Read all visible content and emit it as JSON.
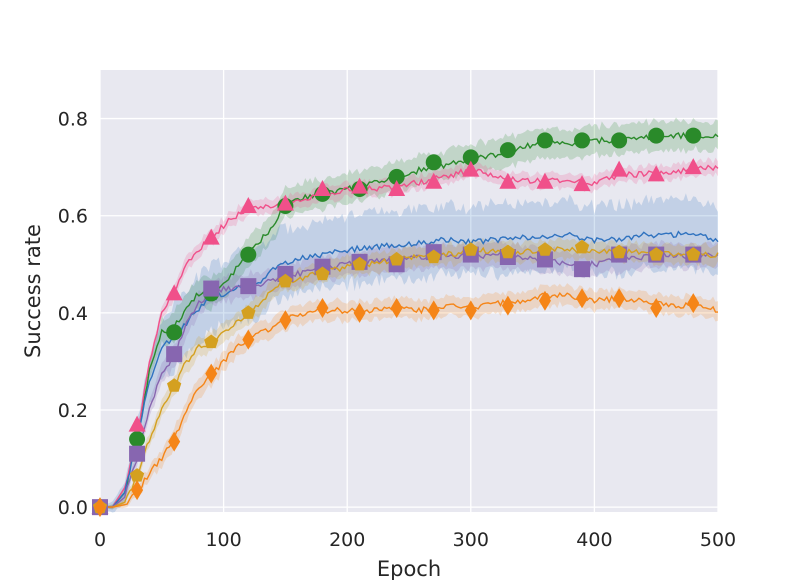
{
  "chart_data": {
    "type": "line",
    "title": "",
    "xlabel": "Epoch",
    "ylabel": "Success rate",
    "xlim": [
      0,
      500
    ],
    "ylim": [
      -0.01,
      0.9
    ],
    "xticks": [
      0,
      100,
      200,
      300,
      400,
      500
    ],
    "yticks": [
      0.0,
      0.2,
      0.4,
      0.6,
      0.8
    ],
    "ytick_labels": [
      "0.0",
      "0.2",
      "0.4",
      "0.6",
      "0.8"
    ],
    "grid": true,
    "legend": "none",
    "marker_x": [
      0,
      30,
      60,
      90,
      120,
      150,
      180,
      210,
      240,
      270,
      300,
      330,
      360,
      390,
      420,
      450,
      480
    ],
    "series": [
      {
        "name": "green-circle",
        "color": "#2a8a2a",
        "marker": "circle",
        "marker_values": [
          0.0,
          0.14,
          0.36,
          0.44,
          0.52,
          0.62,
          0.645,
          0.655,
          0.68,
          0.71,
          0.72,
          0.735,
          0.755,
          0.755,
          0.755,
          0.765,
          0.765
        ],
        "x": [
          0,
          10,
          20,
          30,
          40,
          50,
          60,
          70,
          80,
          90,
          100,
          110,
          120,
          130,
          140,
          150,
          160,
          170,
          180,
          200,
          220,
          240,
          260,
          280,
          300,
          320,
          340,
          360,
          380,
          400,
          420,
          440,
          460,
          480,
          500
        ],
        "y": [
          0.0,
          0.0,
          0.03,
          0.14,
          0.28,
          0.36,
          0.37,
          0.41,
          0.44,
          0.44,
          0.46,
          0.49,
          0.52,
          0.55,
          0.58,
          0.63,
          0.635,
          0.64,
          0.645,
          0.655,
          0.665,
          0.68,
          0.695,
          0.705,
          0.715,
          0.725,
          0.74,
          0.75,
          0.745,
          0.755,
          0.755,
          0.76,
          0.765,
          0.765,
          0.765
        ],
        "band": 0.03
      },
      {
        "name": "pink-triangle",
        "color": "#f0508a",
        "marker": "triangle",
        "marker_values": [
          0.0,
          0.17,
          0.44,
          0.555,
          0.62,
          0.625,
          0.655,
          0.66,
          0.655,
          0.67,
          0.695,
          0.67,
          0.67,
          0.665,
          0.695,
          0.685,
          0.7
        ],
        "x": [
          0,
          10,
          20,
          30,
          40,
          50,
          60,
          70,
          80,
          90,
          100,
          110,
          120,
          130,
          140,
          150,
          160,
          180,
          200,
          220,
          240,
          260,
          280,
          300,
          320,
          340,
          360,
          380,
          400,
          420,
          440,
          460,
          480,
          500
        ],
        "y": [
          0.0,
          0.0,
          0.04,
          0.15,
          0.3,
          0.4,
          0.44,
          0.5,
          0.53,
          0.555,
          0.58,
          0.6,
          0.615,
          0.62,
          0.62,
          0.625,
          0.63,
          0.645,
          0.655,
          0.655,
          0.66,
          0.67,
          0.68,
          0.695,
          0.68,
          0.675,
          0.67,
          0.675,
          0.665,
          0.685,
          0.685,
          0.69,
          0.695,
          0.7
        ],
        "band": 0.015
      },
      {
        "name": "blue",
        "color": "#2f72bf",
        "marker": "none",
        "marker_values": [],
        "x": [
          0,
          10,
          20,
          30,
          40,
          50,
          60,
          70,
          80,
          90,
          100,
          110,
          120,
          130,
          140,
          150,
          160,
          180,
          200,
          220,
          240,
          260,
          280,
          300,
          320,
          340,
          360,
          380,
          400,
          420,
          440,
          460,
          480,
          500
        ],
        "y": [
          0.0,
          0.0,
          0.03,
          0.14,
          0.26,
          0.33,
          0.35,
          0.38,
          0.41,
          0.43,
          0.44,
          0.45,
          0.455,
          0.46,
          0.49,
          0.5,
          0.51,
          0.52,
          0.53,
          0.535,
          0.54,
          0.545,
          0.55,
          0.545,
          0.55,
          0.555,
          0.555,
          0.56,
          0.55,
          0.55,
          0.56,
          0.56,
          0.565,
          0.55
        ],
        "band": 0.07
      },
      {
        "name": "purple-square",
        "color": "#8766b0",
        "marker": "square",
        "marker_values": [
          0.0,
          0.11,
          0.315,
          0.45,
          0.455,
          0.48,
          0.495,
          0.505,
          0.5,
          0.525,
          0.52,
          0.515,
          0.51,
          0.49,
          0.52,
          0.52,
          0.52
        ],
        "x": [
          0,
          10,
          20,
          30,
          40,
          50,
          60,
          70,
          80,
          90,
          100,
          110,
          120,
          130,
          140,
          150,
          160,
          180,
          200,
          220,
          240,
          260,
          280,
          300,
          320,
          340,
          360,
          380,
          400,
          420,
          440,
          460,
          480,
          500
        ],
        "y": [
          0.0,
          0.0,
          0.02,
          0.1,
          0.2,
          0.28,
          0.31,
          0.38,
          0.42,
          0.44,
          0.45,
          0.45,
          0.455,
          0.46,
          0.47,
          0.475,
          0.48,
          0.49,
          0.5,
          0.505,
          0.51,
          0.515,
          0.52,
          0.515,
          0.52,
          0.515,
          0.51,
          0.5,
          0.5,
          0.51,
          0.515,
          0.52,
          0.515,
          0.52
        ],
        "band": 0.025
      },
      {
        "name": "gold-pentagon",
        "color": "#d4a020",
        "marker": "pentagon",
        "marker_values": [
          0.0,
          0.065,
          0.25,
          0.34,
          0.4,
          0.465,
          0.48,
          0.5,
          0.51,
          0.515,
          0.53,
          0.525,
          0.53,
          0.535,
          0.525,
          0.52,
          0.52
        ],
        "x": [
          0,
          10,
          20,
          30,
          40,
          50,
          60,
          70,
          80,
          90,
          100,
          110,
          120,
          130,
          140,
          150,
          160,
          180,
          200,
          220,
          240,
          260,
          280,
          300,
          320,
          340,
          360,
          380,
          400,
          420,
          440,
          460,
          480,
          500
        ],
        "y": [
          0.0,
          0.0,
          0.01,
          0.06,
          0.14,
          0.2,
          0.25,
          0.3,
          0.33,
          0.34,
          0.36,
          0.38,
          0.4,
          0.42,
          0.45,
          0.465,
          0.47,
          0.485,
          0.495,
          0.5,
          0.51,
          0.515,
          0.52,
          0.525,
          0.53,
          0.525,
          0.53,
          0.53,
          0.525,
          0.525,
          0.525,
          0.52,
          0.52,
          0.52
        ],
        "band": 0.02
      },
      {
        "name": "orange-diamond",
        "color": "#f58518",
        "marker": "diamond",
        "marker_values": [
          0.0,
          0.035,
          0.135,
          0.275,
          0.345,
          0.385,
          0.41,
          0.4,
          0.41,
          0.405,
          0.405,
          0.415,
          0.425,
          0.43,
          0.43,
          0.41,
          0.42
        ],
        "x": [
          0,
          10,
          20,
          30,
          40,
          50,
          60,
          70,
          80,
          90,
          100,
          110,
          120,
          130,
          140,
          150,
          160,
          180,
          200,
          220,
          240,
          260,
          280,
          300,
          320,
          340,
          360,
          380,
          400,
          420,
          440,
          460,
          480,
          500
        ],
        "y": [
          0.0,
          0.0,
          0.005,
          0.03,
          0.07,
          0.1,
          0.14,
          0.2,
          0.25,
          0.27,
          0.3,
          0.33,
          0.345,
          0.36,
          0.37,
          0.385,
          0.395,
          0.405,
          0.405,
          0.405,
          0.41,
          0.405,
          0.415,
          0.41,
          0.42,
          0.425,
          0.435,
          0.435,
          0.425,
          0.43,
          0.425,
          0.415,
          0.415,
          0.405
        ],
        "band": 0.02
      }
    ]
  }
}
